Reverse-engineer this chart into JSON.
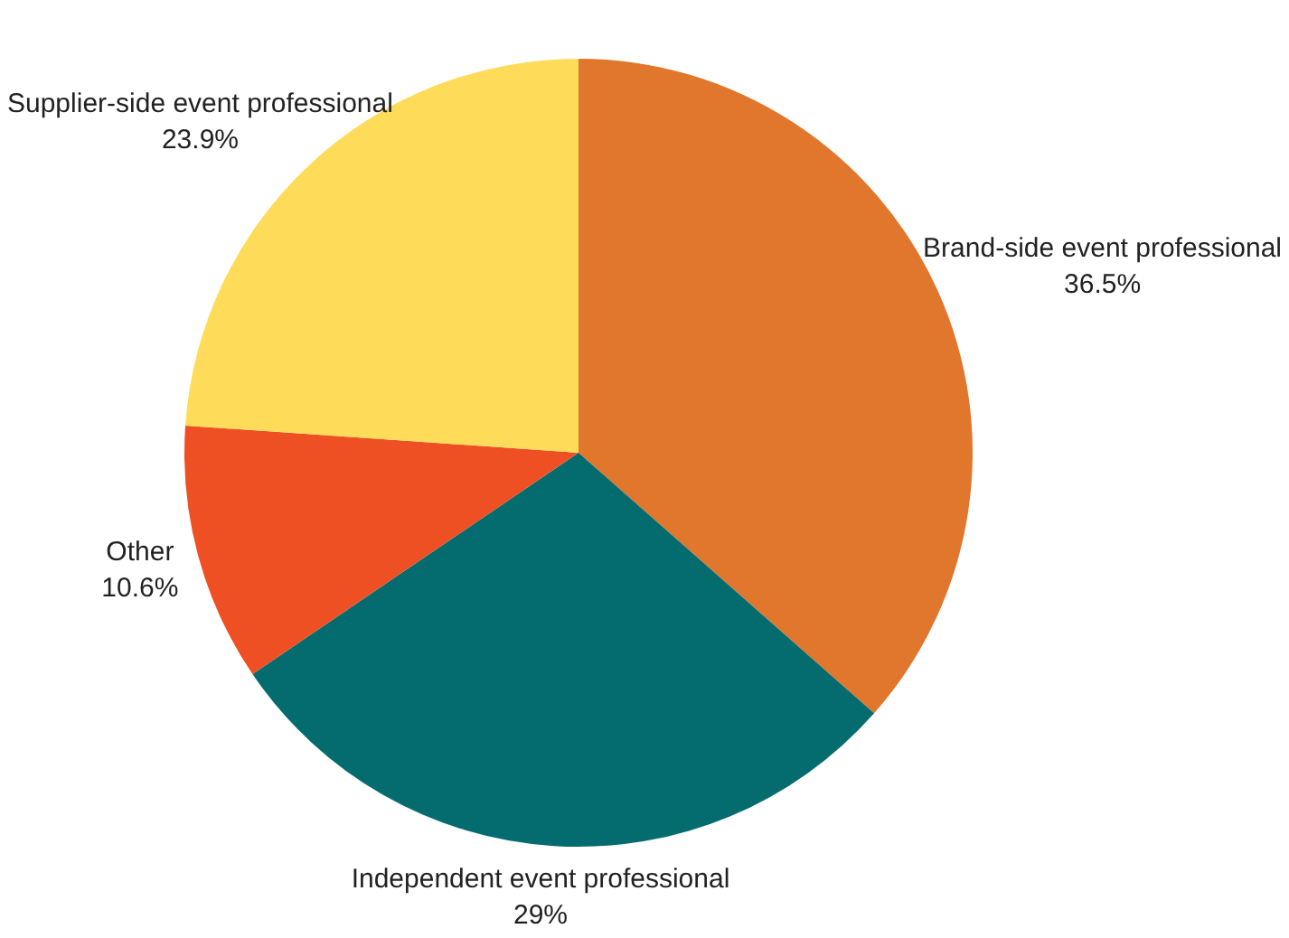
{
  "chart_data": {
    "type": "pie",
    "categories": [
      "Brand-side event professional",
      "Independent event professional",
      "Other",
      "Supplier-side event professional"
    ],
    "values": [
      36.5,
      29,
      10.6,
      23.9
    ],
    "value_labels": [
      "36.5%",
      "29%",
      "10.6%",
      "23.9%"
    ],
    "colors": [
      "#e0772d",
      "#046c6e",
      "#ef5023",
      "#fedc5a"
    ],
    "legend": false
  }
}
